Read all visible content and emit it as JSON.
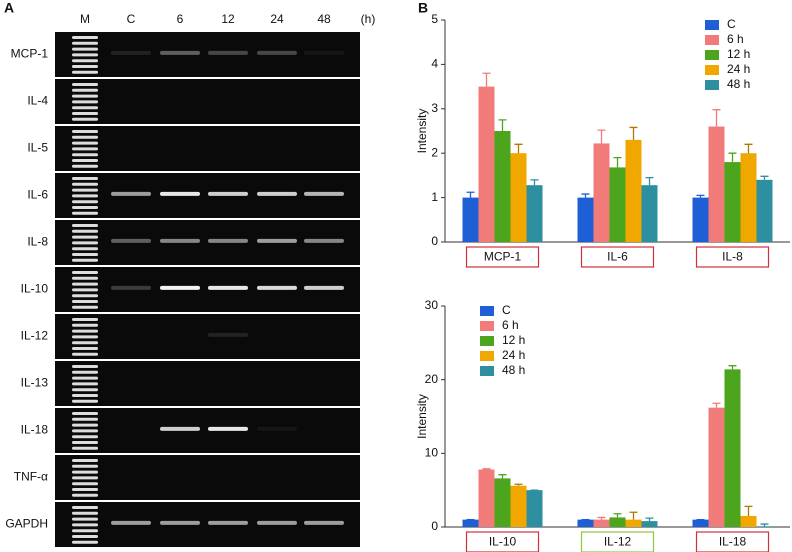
{
  "panel_labels": [
    "A",
    "B"
  ],
  "panel_a": {
    "lanes": [
      "M",
      "C",
      "6",
      "12",
      "24",
      "48",
      "(h)"
    ],
    "rows": [
      "MCP-1",
      "IL-4",
      "IL-5",
      "IL-6",
      "IL-8",
      "IL-10",
      "IL-12",
      "IL-13",
      "IL-18",
      "TNF-α",
      "GAPDH"
    ]
  },
  "chart_data": [
    {
      "type": "bar",
      "y_label": "Intensity",
      "categories": [
        "MCP-1",
        "IL-6",
        "IL-8"
      ],
      "category_box_colors": [
        "#d0303a",
        "#d0303a",
        "#d0303a"
      ],
      "ylim": [
        0,
        5
      ],
      "yticks": [
        0,
        1,
        2,
        3,
        4,
        5
      ],
      "legend": "upper right",
      "series": [
        {
          "name": "C",
          "color": "#1f5fd6",
          "values": [
            1.0,
            1.0,
            1.0
          ],
          "errors": [
            0.12,
            0.08,
            0.05
          ]
        },
        {
          "name": "6 h",
          "color": "#f07b78",
          "values": [
            3.5,
            2.22,
            2.6
          ],
          "errors": [
            0.3,
            0.3,
            0.38
          ]
        },
        {
          "name": "12 h",
          "color": "#4ca51d",
          "values": [
            2.5,
            1.68,
            1.8
          ],
          "errors": [
            0.25,
            0.22,
            0.2
          ]
        },
        {
          "name": "24 h",
          "color": "#f0a800",
          "values": [
            2.0,
            2.3,
            2.0
          ],
          "errors": [
            0.2,
            0.28,
            0.2
          ]
        },
        {
          "name": "48 h",
          "color": "#2e8fa0",
          "values": [
            1.28,
            1.28,
            1.4
          ],
          "errors": [
            0.12,
            0.17,
            0.08
          ]
        }
      ]
    },
    {
      "type": "bar",
      "y_label": "Intensity",
      "categories": [
        "IL-10",
        "IL-12",
        "IL-18"
      ],
      "category_box_colors": [
        "#d0303a",
        "#8cc63f",
        "#d0303a"
      ],
      "ylim": [
        0,
        30
      ],
      "yticks": [
        0,
        10,
        20,
        30
      ],
      "legend": "upper left",
      "series": [
        {
          "name": "C",
          "color": "#1f5fd6",
          "values": [
            1.0,
            1.0,
            1.0
          ],
          "errors": [
            0,
            0,
            0
          ]
        },
        {
          "name": "6 h",
          "color": "#f07b78",
          "values": [
            7.8,
            1.0,
            16.2
          ],
          "errors": [
            0.1,
            0.3,
            0.6
          ]
        },
        {
          "name": "12 h",
          "color": "#4ca51d",
          "values": [
            6.6,
            1.3,
            21.4
          ],
          "errors": [
            0.5,
            0.5,
            0.5
          ]
        },
        {
          "name": "24 h",
          "color": "#f0a800",
          "values": [
            5.6,
            1.0,
            1.5
          ],
          "errors": [
            0.2,
            1.0,
            1.3
          ]
        },
        {
          "name": "48 h",
          "color": "#2e8fa0",
          "values": [
            5.0,
            0.8,
            0.1
          ],
          "errors": [
            0,
            0.4,
            0.3
          ]
        }
      ]
    }
  ]
}
